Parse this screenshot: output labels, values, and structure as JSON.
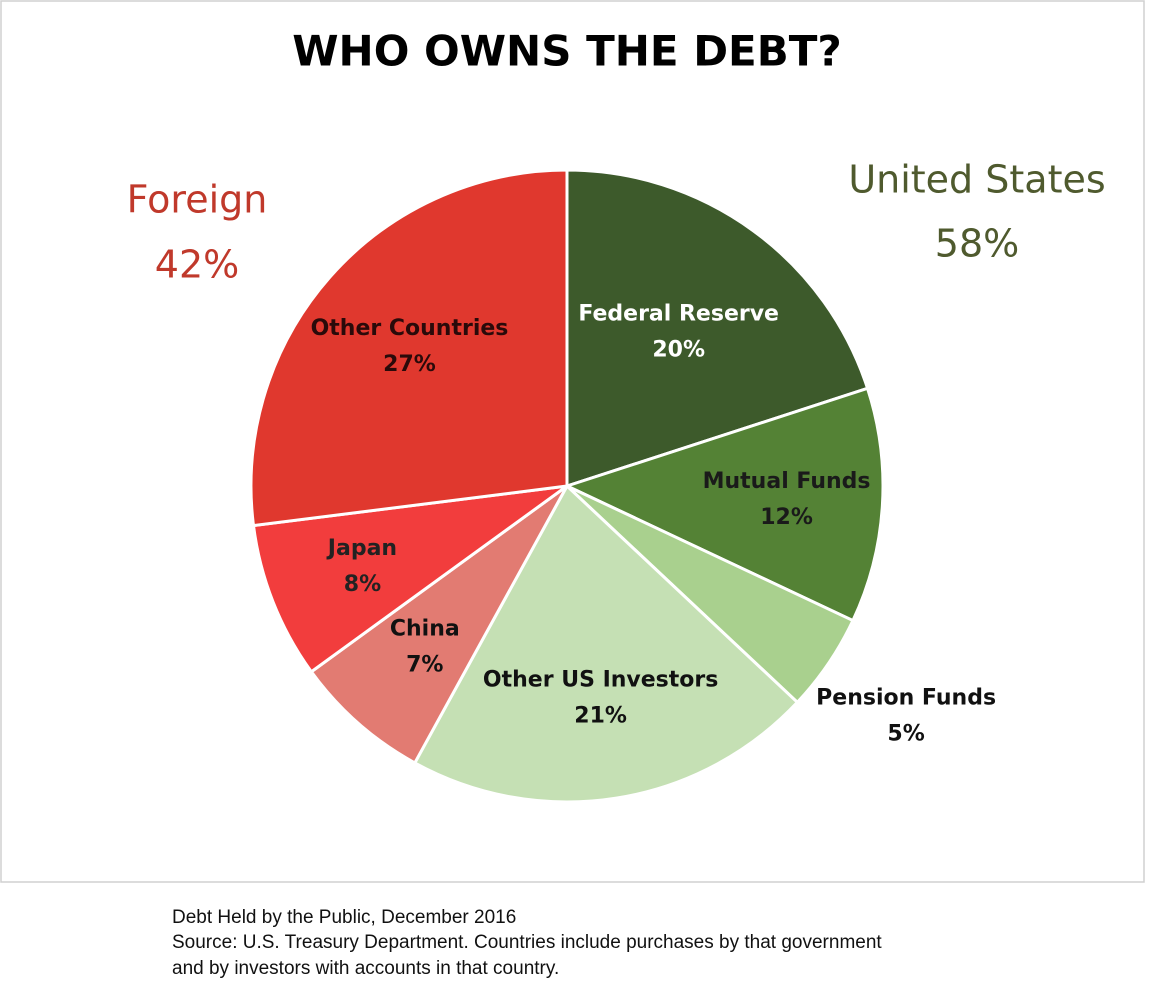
{
  "chart_data": {
    "type": "pie",
    "title": "WHO OWNS THE DEBT?",
    "categories": [
      "Federal Reserve",
      "Mutual Funds",
      "Pension Funds",
      "Other US Investors",
      "China",
      "Japan",
      "Other Countries"
    ],
    "values": [
      20,
      12,
      5,
      21,
      7,
      8,
      27
    ],
    "value_labels": [
      "20%",
      "12%",
      "5%",
      "21%",
      "7%",
      "8%",
      "27%"
    ],
    "colors": [
      "#3d5a2b",
      "#548235",
      "#a9d08e",
      "#c5e0b4",
      "#e27b72",
      "#f23d3d",
      "#e0382e"
    ],
    "groups": [
      {
        "name": "Foreign",
        "value": 42,
        "label": "42%",
        "color": "#c0392b"
      },
      {
        "name": "United States",
        "value": 58,
        "label": "58%",
        "color": "#4f5a2e"
      }
    ],
    "notes": [
      "Debt Held by the Public, December 2016",
      "Source: U.S. Treasury Department. Countries include purchases by that government",
      "and by investors with accounts in that country."
    ]
  }
}
